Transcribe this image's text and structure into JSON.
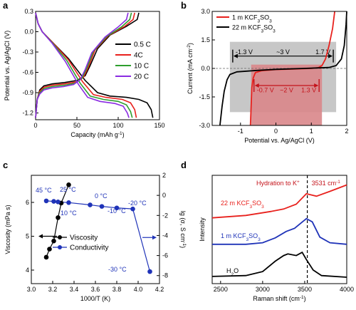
{
  "panels": {
    "a": {
      "letter": "a"
    },
    "b": {
      "letter": "b"
    },
    "c": {
      "letter": "c"
    },
    "d": {
      "letter": "d"
    }
  },
  "chart_data": [
    {
      "id": "a",
      "type": "line",
      "xlabel": "Capacity (mAh g",
      "xlabel_sup": "-1",
      "xlabel_end": ")",
      "ylabel": "Potential vs. Ag/AgCl (V)",
      "xlim": [
        0,
        150
      ],
      "ylim": [
        -1.3,
        0.3
      ],
      "xticks": [
        0,
        50,
        100,
        150
      ],
      "yticks": [
        -1.2,
        -0.9,
        -0.6,
        -0.3,
        0.0,
        0.3
      ],
      "ytick_labels": [
        "-1.2",
        "-0.9",
        "-0.6",
        "-0.3",
        "0.0",
        "0.3"
      ],
      "legend_position": "right",
      "series": [
        {
          "name": "0.5 C",
          "color": "#000000",
          "charge": [
            [
              0,
              -1.27
            ],
            [
              2,
              -1.0
            ],
            [
              5,
              -0.86
            ],
            [
              10,
              -0.8
            ],
            [
              20,
              -0.77
            ],
            [
              35,
              -0.75
            ],
            [
              50,
              -0.72
            ],
            [
              60,
              -0.65
            ],
            [
              66,
              -0.5
            ],
            [
              75,
              -0.25
            ],
            [
              90,
              -0.05
            ],
            [
              110,
              0.08
            ],
            [
              123,
              0.18
            ],
            [
              125,
              0.28
            ]
          ],
          "discharge": [
            [
              0,
              0.28
            ],
            [
              3,
              0.12
            ],
            [
              8,
              0.0
            ],
            [
              20,
              -0.15
            ],
            [
              40,
              -0.4
            ],
            [
              60,
              -0.72
            ],
            [
              75,
              -0.9
            ],
            [
              90,
              -0.95
            ],
            [
              110,
              -0.97
            ],
            [
              125,
              -1.0
            ],
            [
              135,
              -1.05
            ],
            [
              140,
              -1.15
            ],
            [
              142,
              -1.27
            ]
          ]
        },
        {
          "name": "4C",
          "color": "#e8211d",
          "charge": [
            [
              0,
              -1.27
            ],
            [
              2,
              -1.0
            ],
            [
              5,
              -0.88
            ],
            [
              10,
              -0.82
            ],
            [
              20,
              -0.79
            ],
            [
              35,
              -0.77
            ],
            [
              50,
              -0.74
            ],
            [
              58,
              -0.67
            ],
            [
              64,
              -0.52
            ],
            [
              72,
              -0.27
            ],
            [
              88,
              -0.06
            ],
            [
              108,
              0.08
            ],
            [
              118,
              0.18
            ],
            [
              120,
              0.28
            ]
          ],
          "discharge": [
            [
              0,
              0.28
            ],
            [
              3,
              0.12
            ],
            [
              8,
              0.0
            ],
            [
              20,
              -0.15
            ],
            [
              40,
              -0.42
            ],
            [
              57,
              -0.74
            ],
            [
              70,
              -0.93
            ],
            [
              85,
              -0.97
            ],
            [
              105,
              -1.0
            ],
            [
              115,
              -1.05
            ],
            [
              120,
              -1.15
            ],
            [
              122,
              -1.27
            ]
          ]
        },
        {
          "name": "10 C",
          "color": "#2e9e2e",
          "charge": [
            [
              0,
              -1.27
            ],
            [
              2,
              -1.0
            ],
            [
              5,
              -0.9
            ],
            [
              10,
              -0.84
            ],
            [
              20,
              -0.81
            ],
            [
              35,
              -0.79
            ],
            [
              48,
              -0.76
            ],
            [
              56,
              -0.69
            ],
            [
              62,
              -0.54
            ],
            [
              70,
              -0.29
            ],
            [
              86,
              -0.07
            ],
            [
              104,
              0.07
            ],
            [
              114,
              0.18
            ],
            [
              116,
              0.28
            ]
          ],
          "discharge": [
            [
              0,
              0.28
            ],
            [
              3,
              0.12
            ],
            [
              8,
              0.0
            ],
            [
              20,
              -0.16
            ],
            [
              38,
              -0.43
            ],
            [
              54,
              -0.76
            ],
            [
              66,
              -0.95
            ],
            [
              82,
              -1.0
            ],
            [
              100,
              -1.03
            ],
            [
              110,
              -1.08
            ],
            [
              115,
              -1.18
            ],
            [
              117,
              -1.27
            ]
          ]
        },
        {
          "name": "20 C",
          "color": "#8a2be2",
          "charge": [
            [
              0,
              -1.27
            ],
            [
              2,
              -1.0
            ],
            [
              5,
              -0.92
            ],
            [
              10,
              -0.86
            ],
            [
              20,
              -0.83
            ],
            [
              34,
              -0.81
            ],
            [
              46,
              -0.78
            ],
            [
              54,
              -0.71
            ],
            [
              60,
              -0.56
            ],
            [
              68,
              -0.31
            ],
            [
              84,
              -0.08
            ],
            [
              100,
              0.07
            ],
            [
              110,
              0.18
            ],
            [
              112,
              0.28
            ]
          ],
          "discharge": [
            [
              0,
              0.28
            ],
            [
              3,
              0.12
            ],
            [
              8,
              0.0
            ],
            [
              20,
              -0.17
            ],
            [
              36,
              -0.44
            ],
            [
              52,
              -0.78
            ],
            [
              63,
              -0.97
            ],
            [
              78,
              -1.03
            ],
            [
              96,
              -1.06
            ],
            [
              106,
              -1.1
            ],
            [
              111,
              -1.2
            ],
            [
              113,
              -1.27
            ]
          ]
        }
      ]
    },
    {
      "id": "b",
      "type": "line",
      "xlabel": "Potential vs. Ag/AgCl (V)",
      "ylabel": "Current (mA cm",
      "ylabel_sup": "-2",
      "ylabel_end": ")",
      "xlim": [
        -1.8,
        2.0
      ],
      "ylim": [
        -3.0,
        3.0
      ],
      "xticks": [
        -1,
        0,
        1,
        2
      ],
      "yticks": [
        -3.0,
        -1.5,
        0.0,
        1.5,
        3.0
      ],
      "ytick_labels": [
        "-3.0",
        "-1.5",
        "0.0",
        "1.5",
        "3.0"
      ],
      "legend_position": "top-left",
      "series": [
        {
          "name": "1 m  KCF",
          "sub": "3",
          "name_end": "SO",
          "sub2": "3",
          "color": "#e8211d",
          "points": [
            [
              -0.72,
              -3.0
            ],
            [
              -0.7,
              -2.0
            ],
            [
              -0.68,
              -1.0
            ],
            [
              -0.64,
              -0.5
            ],
            [
              -0.58,
              -0.22
            ],
            [
              -0.4,
              -0.12
            ],
            [
              0.0,
              -0.06
            ],
            [
              0.5,
              -0.03
            ],
            [
              1.0,
              0.0
            ],
            [
              1.2,
              0.04
            ],
            [
              1.3,
              0.15
            ],
            [
              1.4,
              0.5
            ],
            [
              1.5,
              1.2
            ],
            [
              1.6,
              2.1
            ],
            [
              1.66,
              3.0
            ]
          ]
        },
        {
          "name": "22 m  KCF",
          "sub": "3",
          "name_end": "SO",
          "sub2": "3",
          "color": "#000000",
          "points": [
            [
              -1.58,
              -3.0
            ],
            [
              -1.52,
              -2.0
            ],
            [
              -1.46,
              -1.2
            ],
            [
              -1.38,
              -0.6
            ],
            [
              -1.3,
              -0.32
            ],
            [
              -1.1,
              -0.18
            ],
            [
              -0.5,
              -0.1
            ],
            [
              0.0,
              -0.05
            ],
            [
              0.8,
              0.0
            ],
            [
              1.5,
              0.05
            ],
            [
              1.7,
              0.15
            ],
            [
              1.85,
              0.5
            ],
            [
              1.93,
              1.2
            ],
            [
              1.98,
              2.3
            ],
            [
              2.0,
              3.0
            ]
          ]
        }
      ],
      "windows": [
        {
          "label_left": "-1.3 V",
          "label_mid": "~3 V",
          "label_right": "1.7 V",
          "x0": -1.3,
          "x1": 1.7,
          "y0": -2.3,
          "y1": 1.4,
          "color": "#bdbdbd",
          "arrow_y": 0.65,
          "label_y": 0.75
        },
        {
          "label_left": "-0.7 V",
          "label_mid": "~2 V",
          "label_right": "1.3 V",
          "x0": -0.7,
          "x1": 1.3,
          "y0": -3.0,
          "y1": 0.2,
          "color": "#d9868a",
          "arrow_y": -0.9,
          "label_y": -1.25
        }
      ]
    },
    {
      "id": "c",
      "type": "scatter",
      "xlabel": "1000/T (K)",
      "ylabel": "Viscosity (mPa s)",
      "ylabel2": "lg (σ, S cm",
      "ylabel2_sup": "-1",
      "ylabel2_end": ")",
      "xlim": [
        3.0,
        4.2
      ],
      "ylim": [
        3.6,
        6.8
      ],
      "y2lim": [
        -8.8,
        2.0
      ],
      "xticks": [
        3.0,
        3.2,
        3.4,
        3.6,
        3.8,
        4.0,
        4.2
      ],
      "xtick_labels": [
        "3.0",
        "3.2",
        "3.4",
        "3.6",
        "3.8",
        "4.0",
        "4.2"
      ],
      "yticks": [
        4,
        5,
        6
      ],
      "y2ticks": [
        2,
        0,
        -2,
        -4,
        -6,
        -8
      ],
      "legend_position": "bottom-left",
      "series": [
        {
          "name": "Viscosity",
          "axis": "left",
          "color": "#000000",
          "x": [
            3.14,
            3.17,
            3.21,
            3.25,
            3.28,
            3.35
          ],
          "y": [
            4.38,
            4.62,
            4.86,
            5.55,
            5.98,
            6.52
          ]
        },
        {
          "name": "Conductivity",
          "axis": "right",
          "color": "#1f33b8",
          "x": [
            3.14,
            3.21,
            3.25,
            3.35,
            3.55,
            3.66,
            3.8,
            3.95,
            4.11
          ],
          "y": [
            -0.55,
            -0.6,
            -0.65,
            -0.72,
            -0.95,
            -1.1,
            -1.25,
            -1.35,
            -7.6
          ]
        }
      ],
      "annotations": [
        "45 °C",
        "25 °C",
        "10 °C",
        "0 °C",
        "-10 °C",
        "-20 °C",
        "-30 °C"
      ]
    },
    {
      "id": "d",
      "type": "line",
      "xlabel": "Raman shift (cm",
      "xlabel_sup": "-1",
      "xlabel_end": ")",
      "ylabel": "Intensity",
      "xlim": [
        2400,
        4000
      ],
      "xticks": [
        2500,
        3000,
        3500,
        4000
      ],
      "yticks_shown": false,
      "vline_x": 3531,
      "annotation_top": "Hydration to K",
      "annotation_top_sup": "+",
      "annotation_value": "3531 cm",
      "annotation_value_sup": "-1",
      "series": [
        {
          "name": "22 m  KCF",
          "sub": "3",
          "name_end": "SO",
          "sub2": "3",
          "color": "#e8211d",
          "points": [
            [
              2400,
              0.47
            ],
            [
              2800,
              0.5
            ],
            [
              3100,
              0.55
            ],
            [
              3250,
              0.58
            ],
            [
              3400,
              0.64
            ],
            [
              3520,
              0.77
            ],
            [
              3560,
              0.76
            ],
            [
              3640,
              0.74
            ],
            [
              3800,
              0.8
            ],
            [
              4000,
              0.88
            ]
          ]
        },
        {
          "name": "1 m  KCF",
          "sub": "3",
          "name_end": "SO",
          "sub2": "3",
          "color": "#1f33b8",
          "points": [
            [
              2400,
              0.14
            ],
            [
              2800,
              0.14
            ],
            [
              3000,
              0.16
            ],
            [
              3150,
              0.22
            ],
            [
              3280,
              0.3
            ],
            [
              3380,
              0.34
            ],
            [
              3450,
              0.4
            ],
            [
              3520,
              0.46
            ],
            [
              3590,
              0.42
            ],
            [
              3680,
              0.23
            ],
            [
              3800,
              0.16
            ],
            [
              4000,
              0.14
            ]
          ]
        },
        {
          "name": "H",
          "sub": "2",
          "name_end": "O",
          "sub2": "",
          "color": "#000000",
          "points": [
            [
              2400,
              -0.26
            ],
            [
              2800,
              -0.25
            ],
            [
              3000,
              -0.2
            ],
            [
              3150,
              -0.07
            ],
            [
              3250,
              0.0
            ],
            [
              3300,
              0.02
            ],
            [
              3400,
              0.0
            ],
            [
              3470,
              0.04
            ],
            [
              3520,
              -0.05
            ],
            [
              3600,
              -0.18
            ],
            [
              3700,
              -0.25
            ],
            [
              4000,
              -0.27
            ]
          ]
        }
      ]
    }
  ]
}
